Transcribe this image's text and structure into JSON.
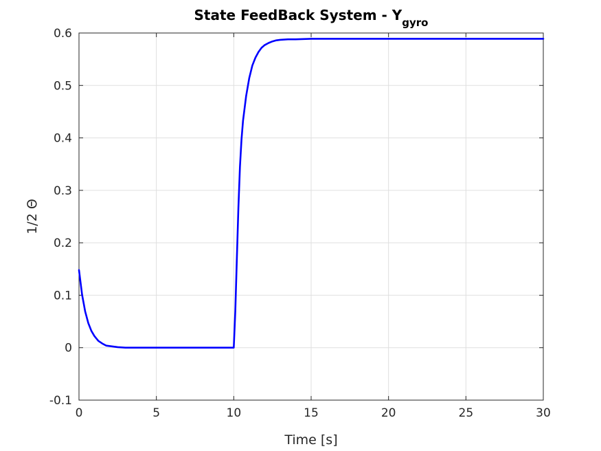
{
  "chart_data": {
    "type": "line",
    "title": "State FeedBack System - Y",
    "title_subscript": "gyro",
    "xlabel": "Time [s]",
    "ylabel": "1/2 Θ",
    "xlim": [
      0,
      30
    ],
    "ylim": [
      -0.1,
      0.6
    ],
    "x_ticks": [
      0,
      5,
      10,
      15,
      20,
      25,
      30
    ],
    "x_tick_labels": [
      "0",
      "5",
      "10",
      "15",
      "20",
      "25",
      "30"
    ],
    "y_ticks": [
      -0.1,
      0,
      0.1,
      0.2,
      0.3,
      0.4,
      0.5,
      0.6
    ],
    "y_tick_labels": [
      "-0.1",
      "0",
      "0.1",
      "0.2",
      "0.3",
      "0.4",
      "0.5",
      "0.6"
    ],
    "grid": true,
    "box": true,
    "series": [
      {
        "color": "#0000ff",
        "x": [
          0,
          0.2,
          0.4,
          0.6,
          0.8,
          1.0,
          1.25,
          1.5,
          1.75,
          2.0,
          2.5,
          3.0,
          4.0,
          6.0,
          8.0,
          10.0,
          10.1,
          10.2,
          10.3,
          10.4,
          10.5,
          10.6,
          10.8,
          11.0,
          11.2,
          11.4,
          11.6,
          11.8,
          12.0,
          12.25,
          12.5,
          12.75,
          13.0,
          13.5,
          14.0,
          15.0,
          20.0,
          25.0,
          30.0
        ],
        "y": [
          0.148,
          0.101,
          0.069,
          0.047,
          0.032,
          0.022,
          0.013,
          0.008,
          0.004,
          0.003,
          0.001,
          0.0,
          0.0,
          0.0,
          0.0,
          0.0,
          0.07,
          0.17,
          0.267,
          0.345,
          0.397,
          0.433,
          0.48,
          0.514,
          0.538,
          0.553,
          0.564,
          0.572,
          0.577,
          0.581,
          0.584,
          0.586,
          0.587,
          0.588,
          0.588,
          0.589,
          0.589,
          0.589,
          0.589
        ]
      }
    ]
  }
}
